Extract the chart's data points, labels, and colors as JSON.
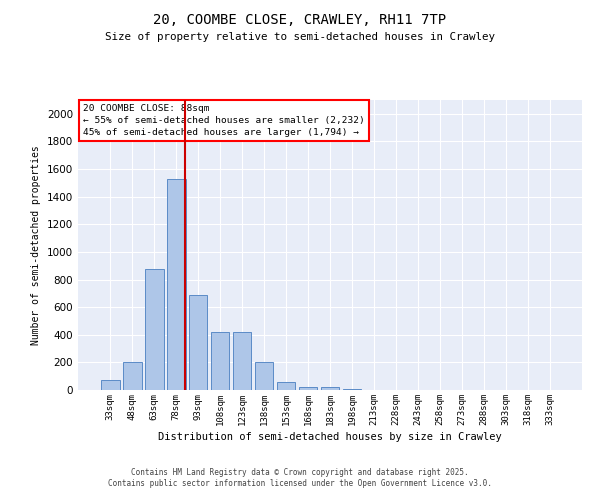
{
  "title1": "20, COOMBE CLOSE, CRAWLEY, RH11 7TP",
  "title2": "Size of property relative to semi-detached houses in Crawley",
  "xlabel": "Distribution of semi-detached houses by size in Crawley",
  "ylabel": "Number of semi-detached properties",
  "categories": [
    "33sqm",
    "48sqm",
    "63sqm",
    "78sqm",
    "93sqm",
    "108sqm",
    "123sqm",
    "138sqm",
    "153sqm",
    "168sqm",
    "183sqm",
    "198sqm",
    "213sqm",
    "228sqm",
    "243sqm",
    "258sqm",
    "273sqm",
    "288sqm",
    "303sqm",
    "318sqm",
    "333sqm"
  ],
  "values": [
    70,
    200,
    875,
    1530,
    685,
    420,
    420,
    200,
    60,
    25,
    20,
    10,
    0,
    0,
    0,
    0,
    0,
    0,
    0,
    0,
    0
  ],
  "bar_color": "#aec6e8",
  "bar_edge_color": "#5b8bc7",
  "bg_color": "#e8edf8",
  "grid_color": "#ffffff",
  "vline_color": "#cc0000",
  "vline_x": 3.42,
  "annotation_title": "20 COOMBE CLOSE: 88sqm",
  "annotation_line1": "← 55% of semi-detached houses are smaller (2,232)",
  "annotation_line2": "45% of semi-detached houses are larger (1,794) →",
  "footer1": "Contains HM Land Registry data © Crown copyright and database right 2025.",
  "footer2": "Contains public sector information licensed under the Open Government Licence v3.0.",
  "ylim": [
    0,
    2100
  ],
  "yticks": [
    0,
    200,
    400,
    600,
    800,
    1000,
    1200,
    1400,
    1600,
    1800,
    2000
  ]
}
